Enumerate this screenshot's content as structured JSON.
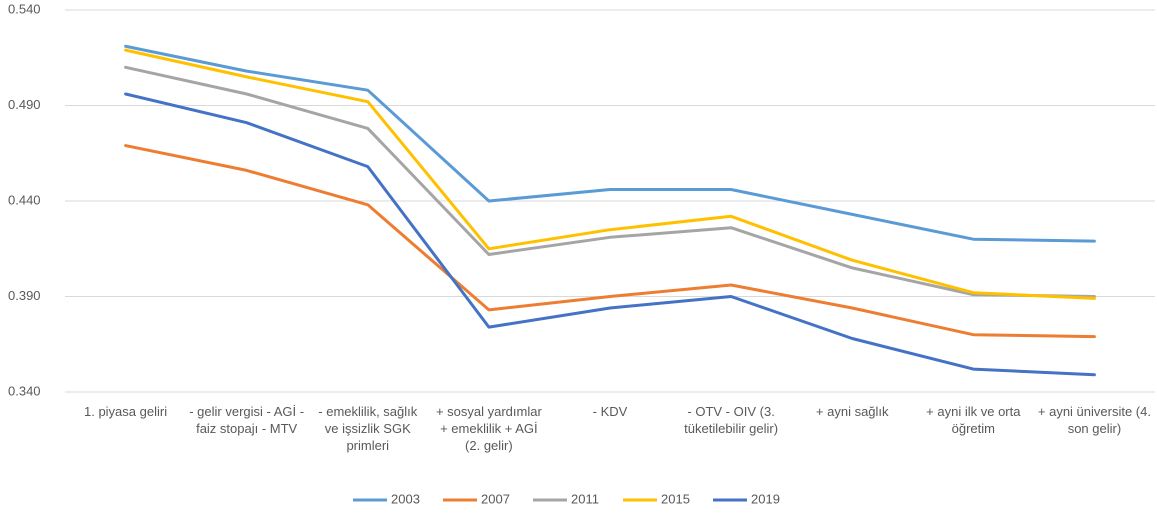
{
  "chart_data": {
    "type": "line",
    "categories": [
      "1. piyasa geliri",
      "- gelir vergisi - AGİ - faiz stopajı - MTV",
      "- emeklilik, sağlık ve işsizlik SGK primleri",
      "+ sosyal yardımlar + emeklilik + AGİ (2. gelir)",
      "- KDV",
      "- OTV - OIV (3. tüketilebilir gelir)",
      "+ ayni sağlık",
      "+ ayni ilk ve orta öğretim",
      "+ ayni üniversite (4. son gelir)"
    ],
    "series": [
      {
        "name": "2003",
        "color": "#5b9bd5",
        "values": [
          0.521,
          0.508,
          0.498,
          0.44,
          0.446,
          0.446,
          0.433,
          0.42,
          0.419
        ]
      },
      {
        "name": "2007",
        "color": "#ed7d31",
        "values": [
          0.469,
          0.456,
          0.438,
          0.383,
          0.39,
          0.396,
          0.384,
          0.37,
          0.369
        ]
      },
      {
        "name": "2011",
        "color": "#a5a5a5",
        "values": [
          0.51,
          0.496,
          0.478,
          0.412,
          0.421,
          0.426,
          0.405,
          0.391,
          0.39
        ]
      },
      {
        "name": "2015",
        "color": "#ffc000",
        "values": [
          0.519,
          0.505,
          0.492,
          0.415,
          0.425,
          0.432,
          0.409,
          0.392,
          0.389
        ]
      },
      {
        "name": "2019",
        "color": "#4472c4",
        "values": [
          0.496,
          0.481,
          0.458,
          0.374,
          0.384,
          0.39,
          0.368,
          0.352,
          0.349
        ]
      }
    ],
    "ylim": [
      0.34,
      0.54
    ],
    "yticks": [
      {
        "value": 0.34,
        "label": "0.340"
      },
      {
        "value": 0.39,
        "label": "0.390"
      },
      {
        "value": 0.44,
        "label": "0.440"
      },
      {
        "value": 0.49,
        "label": "0.490"
      },
      {
        "value": 0.54,
        "label": "0.540"
      }
    ],
    "grid": true,
    "legend": "bottom"
  }
}
